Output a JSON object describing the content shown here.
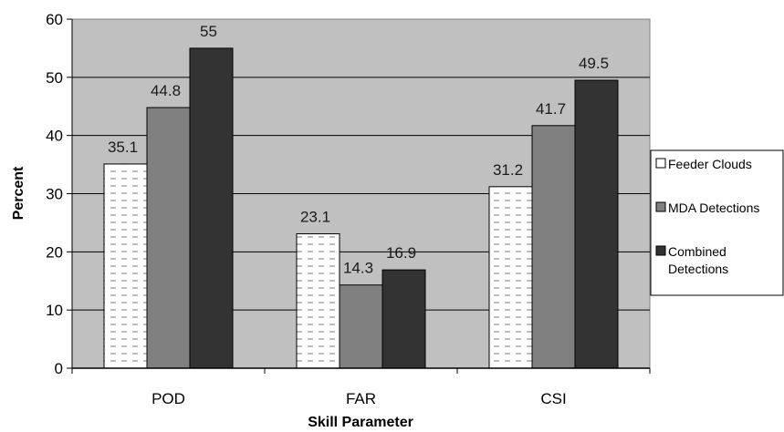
{
  "chart_data": {
    "type": "bar",
    "categories": [
      "POD",
      "FAR",
      "CSI"
    ],
    "series": [
      {
        "name": "Feeder Clouds",
        "values": [
          35.1,
          23.1,
          31.2
        ],
        "labels": [
          "35.1",
          "23.1",
          "31.2"
        ],
        "style": "dashed-fill",
        "color": "#ffffff"
      },
      {
        "name": "MDA Detections",
        "values": [
          44.8,
          14.3,
          41.7
        ],
        "labels": [
          "44.8",
          "14.3",
          "41.7"
        ],
        "style": "solid",
        "color": "#808080"
      },
      {
        "name": "Combined Detections",
        "values": [
          55,
          16.9,
          49.5
        ],
        "labels": [
          "55",
          "16.9",
          "49.5"
        ],
        "style": "solid",
        "color": "#333333"
      }
    ],
    "legend_items": [
      {
        "series": 0,
        "lines": [
          "Feeder Clouds"
        ]
      },
      {
        "series": 1,
        "lines": [
          "MDA Detections"
        ]
      },
      {
        "series": 2,
        "lines": [
          "Combined",
          "Detections"
        ]
      }
    ],
    "xlabel": "Skill Parameter",
    "ylabel": "Percent",
    "ylim": [
      0,
      60
    ],
    "yticks": [
      "0",
      "10",
      "20",
      "30",
      "40",
      "50",
      "60"
    ],
    "grid": true,
    "legend_position": "right",
    "plot_background": "#c0c0c0"
  }
}
